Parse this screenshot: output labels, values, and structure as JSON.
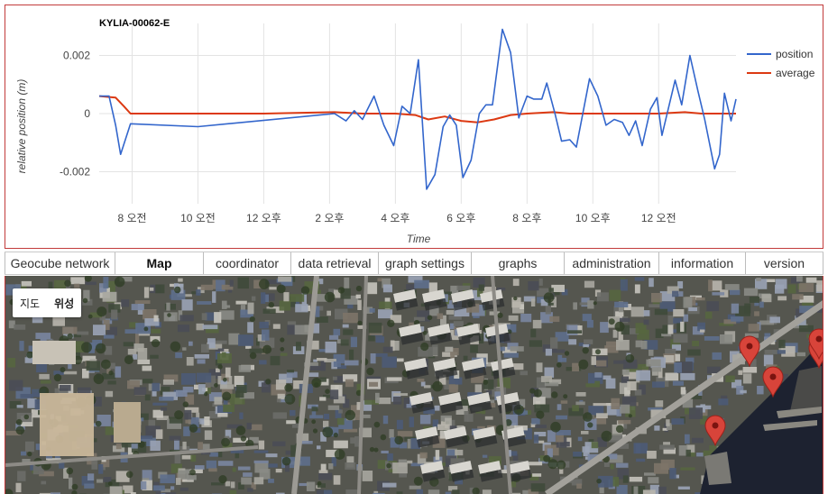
{
  "chart_data": {
    "type": "line",
    "title": "KYLIA-00062-E",
    "xlabel": "Time",
    "ylabel": "relative position (m)",
    "x_unit": "hour of day (continuous, 24 = midnight)",
    "xlim": [
      7.0,
      25.5
    ],
    "ylim": [
      -0.0031,
      0.0031
    ],
    "x_ticks": [
      {
        "value": 8,
        "label": "8 오전"
      },
      {
        "value": 10,
        "label": "10 오전"
      },
      {
        "value": 12,
        "label": "12 오후"
      },
      {
        "value": 14,
        "label": "2 오후"
      },
      {
        "value": 16,
        "label": "4 오후"
      },
      {
        "value": 18,
        "label": "6 오후"
      },
      {
        "value": 20,
        "label": "8 오후"
      },
      {
        "value": 22,
        "label": "10 오후"
      },
      {
        "value": 24,
        "label": "12 오전"
      }
    ],
    "y_ticks": [
      {
        "value": 0.002,
        "label": "0.002"
      },
      {
        "value": 0,
        "label": "0"
      },
      {
        "value": -0.002,
        "label": "-0.002"
      }
    ],
    "grid": true,
    "legend": "right",
    "series": [
      {
        "name": "position",
        "color": "#3366cc",
        "points": [
          [
            7.0,
            0.0006
          ],
          [
            7.3,
            0.0006
          ],
          [
            7.5,
            -0.0004
          ],
          [
            7.65,
            -0.0014
          ],
          [
            7.95,
            -0.00035
          ],
          [
            10.0,
            -0.00045
          ],
          [
            14.15,
            0.0
          ],
          [
            14.5,
            -0.00025
          ],
          [
            14.75,
            0.0001
          ],
          [
            15.0,
            -0.0002
          ],
          [
            15.35,
            0.0006
          ],
          [
            15.65,
            -0.0004
          ],
          [
            15.95,
            -0.0011
          ],
          [
            16.2,
            0.00025
          ],
          [
            16.45,
            0.0
          ],
          [
            16.7,
            0.00185
          ],
          [
            16.95,
            -0.0026
          ],
          [
            17.1,
            -0.0023
          ],
          [
            17.2,
            -0.0021
          ],
          [
            17.45,
            -0.00045
          ],
          [
            17.65,
            -5e-05
          ],
          [
            17.85,
            -0.0004
          ],
          [
            18.05,
            -0.0022
          ],
          [
            18.3,
            -0.0016
          ],
          [
            18.55,
            0.0
          ],
          [
            18.75,
            0.0003
          ],
          [
            18.95,
            0.0003
          ],
          [
            19.25,
            0.0029
          ],
          [
            19.5,
            0.0021
          ],
          [
            19.75,
            -0.00015
          ],
          [
            20.0,
            0.0006
          ],
          [
            20.2,
            0.0005
          ],
          [
            20.45,
            0.0005
          ],
          [
            20.6,
            0.00105
          ],
          [
            20.85,
            0.0
          ],
          [
            21.05,
            -0.00095
          ],
          [
            21.3,
            -0.0009
          ],
          [
            21.5,
            -0.00115
          ],
          [
            21.9,
            0.0012
          ],
          [
            22.15,
            0.0006
          ],
          [
            22.4,
            -0.0004
          ],
          [
            22.65,
            -0.0002
          ],
          [
            22.9,
            -0.0003
          ],
          [
            23.1,
            -0.00075
          ],
          [
            23.3,
            -0.00025
          ],
          [
            23.5,
            -0.0011
          ],
          [
            23.75,
            0.00015
          ],
          [
            23.95,
            0.00055
          ],
          [
            24.1,
            -0.00075
          ],
          [
            24.5,
            0.00115
          ],
          [
            24.7,
            0.0003
          ],
          [
            24.95,
            0.002
          ],
          [
            25.2,
            0.00075
          ],
          [
            25.4,
            -0.0002
          ],
          [
            25.7,
            -0.0019
          ],
          [
            25.85,
            -0.0014
          ],
          [
            26.0,
            0.0007
          ],
          [
            26.2,
            -0.00025
          ],
          [
            26.35,
            0.0005
          ]
        ]
      },
      {
        "name": "average",
        "color": "#dc3912",
        "points": [
          [
            7.0,
            0.0006
          ],
          [
            7.5,
            0.00055
          ],
          [
            7.75,
            0.00025
          ],
          [
            7.95,
            0.0
          ],
          [
            9.5,
            0.0
          ],
          [
            12.0,
            0.0
          ],
          [
            14.15,
            5e-05
          ],
          [
            15.0,
            0.0
          ],
          [
            16.0,
            0.0
          ],
          [
            16.6,
            -5e-05
          ],
          [
            17.0,
            -0.0002
          ],
          [
            17.5,
            -0.0001
          ],
          [
            18.0,
            -0.00025
          ],
          [
            18.5,
            -0.0003
          ],
          [
            19.0,
            -0.0002
          ],
          [
            19.5,
            -5e-05
          ],
          [
            20.0,
            0.0
          ],
          [
            20.8,
            5e-05
          ],
          [
            21.3,
            0.0
          ],
          [
            22.0,
            0.0
          ],
          [
            23.0,
            0.0
          ],
          [
            24.0,
            0.0
          ],
          [
            24.8,
            5e-05
          ],
          [
            25.3,
            0.0
          ],
          [
            26.35,
            0.0
          ]
        ]
      }
    ]
  },
  "tabs": [
    {
      "label": "Geocube network",
      "width": 123
    },
    {
      "label": "Map",
      "width": 98,
      "active": true
    },
    {
      "label": "coordinator",
      "width": 97
    },
    {
      "label": "data retrieval",
      "width": 97
    },
    {
      "label": "graph settings",
      "width": 103
    },
    {
      "label": "graphs",
      "width": 103
    },
    {
      "label": "administration",
      "width": 105
    },
    {
      "label": "information",
      "width": 96
    },
    {
      "label": "version",
      "width": 86
    }
  ],
  "map": {
    "maptype_buttons": [
      {
        "label": "지도",
        "active": false
      },
      {
        "label": "위성",
        "active": true
      }
    ],
    "markers": [
      {
        "x": 825,
        "y": 100,
        "color": "#d8443a"
      },
      {
        "x": 851,
        "y": 134,
        "color": "#d8443a"
      },
      {
        "x": 902,
        "y": 102,
        "color": "#d8443a"
      },
      {
        "x": 902,
        "y": 92,
        "color": "#d8443a"
      },
      {
        "x": 787,
        "y": 188,
        "color": "#d8443a"
      }
    ]
  }
}
